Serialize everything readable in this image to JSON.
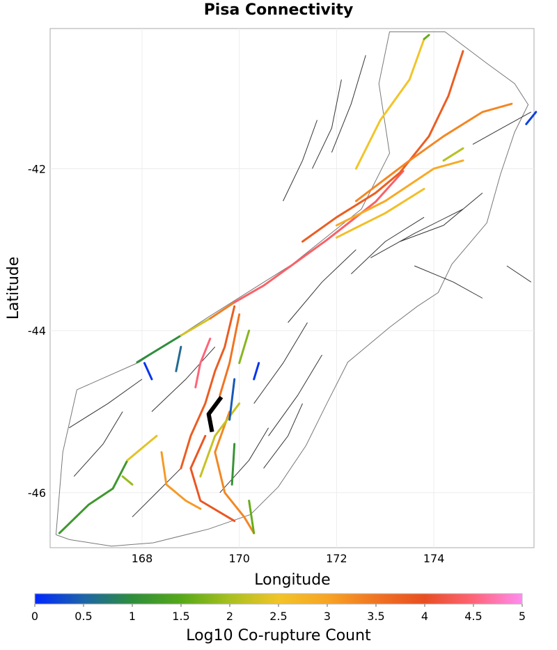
{
  "title": "Pisa Connectivity",
  "chart_data": {
    "type": "map",
    "title": "Pisa Connectivity",
    "xlabel": "Longitude",
    "ylabel": "Latitude",
    "xlim": [
      166.11,
      176.06
    ],
    "ylim": [
      -46.68,
      -40.27
    ],
    "xticks": [
      168,
      170,
      172,
      174
    ],
    "yticks": [
      -42,
      -44,
      -46
    ],
    "xtick_labels": [
      "168",
      "170",
      "172",
      "174"
    ],
    "ytick_labels": [
      "-42",
      "-44",
      "-46"
    ],
    "grid": true,
    "colorbar": {
      "label": "Log10 Co-rupture Count",
      "range": [
        0,
        5
      ],
      "ticks": [
        "0",
        "0.5",
        "1",
        "1.5",
        "2",
        "2.5",
        "3",
        "3.5",
        "4",
        "4.5",
        "5"
      ],
      "stops": [
        {
          "v": 0,
          "c": "#0028ff"
        },
        {
          "v": 0.5,
          "c": "#1d64a8"
        },
        {
          "v": 1,
          "c": "#2f8e3c"
        },
        {
          "v": 1.5,
          "c": "#56a818"
        },
        {
          "v": 2,
          "c": "#a8c020"
        },
        {
          "v": 2.5,
          "c": "#f2c428"
        },
        {
          "v": 3,
          "c": "#f8a424"
        },
        {
          "v": 3.5,
          "c": "#f07422"
        },
        {
          "v": 4,
          "c": "#e84e22"
        },
        {
          "v": 4.5,
          "c": "#ff6478"
        },
        {
          "v": 5,
          "c": "#ff8cf0"
        }
      ]
    },
    "coastline": [
      [
        166.23,
        -46.52
      ],
      [
        166.37,
        -45.5
      ],
      [
        166.66,
        -44.73
      ],
      [
        167.94,
        -44.39
      ],
      [
        169.37,
        -43.83
      ],
      [
        171.09,
        -43.18
      ],
      [
        171.8,
        -42.84
      ],
      [
        172.51,
        -42.5
      ],
      [
        173.09,
        -41.81
      ],
      [
        172.87,
        -40.95
      ],
      [
        173.09,
        -40.31
      ],
      [
        174.23,
        -40.31
      ],
      [
        175.09,
        -40.7
      ],
      [
        175.66,
        -40.95
      ],
      [
        175.94,
        -41.21
      ],
      [
        175.66,
        -41.55
      ],
      [
        175.37,
        -42.07
      ],
      [
        175.09,
        -42.67
      ],
      [
        174.37,
        -43.18
      ],
      [
        174.09,
        -43.53
      ],
      [
        173.66,
        -43.7
      ],
      [
        173.09,
        -43.96
      ],
      [
        172.23,
        -44.39
      ],
      [
        171.8,
        -44.9
      ],
      [
        171.37,
        -45.42
      ],
      [
        170.8,
        -45.93
      ],
      [
        170.23,
        -46.27
      ],
      [
        169.37,
        -46.45
      ],
      [
        168.23,
        -46.62
      ],
      [
        167.37,
        -46.66
      ],
      [
        166.51,
        -46.58
      ],
      [
        166.23,
        -46.52
      ]
    ],
    "background_faults": [
      [
        [
          166.5,
          -45.2
        ],
        [
          167.3,
          -44.9
        ],
        [
          168.0,
          -44.6
        ]
      ],
      [
        [
          166.6,
          -45.8
        ],
        [
          167.2,
          -45.4
        ],
        [
          167.6,
          -45.0
        ]
      ],
      [
        [
          168.2,
          -45.0
        ],
        [
          168.9,
          -44.6
        ],
        [
          169.5,
          -44.2
        ]
      ],
      [
        [
          170.3,
          -44.9
        ],
        [
          170.9,
          -44.4
        ],
        [
          171.4,
          -43.9
        ]
      ],
      [
        [
          170.6,
          -45.3
        ],
        [
          171.2,
          -44.8
        ],
        [
          171.7,
          -44.3
        ]
      ],
      [
        [
          171.0,
          -43.9
        ],
        [
          171.7,
          -43.4
        ],
        [
          172.4,
          -43.0
        ]
      ],
      [
        [
          172.3,
          -43.3
        ],
        [
          173.0,
          -42.9
        ],
        [
          173.8,
          -42.6
        ]
      ],
      [
        [
          172.7,
          -43.1
        ],
        [
          173.6,
          -42.8
        ],
        [
          174.6,
          -42.5
        ]
      ],
      [
        [
          173.3,
          -42.9
        ],
        [
          174.2,
          -42.7
        ],
        [
          175.0,
          -42.3
        ]
      ],
      [
        [
          171.9,
          -41.8
        ],
        [
          172.3,
          -41.2
        ],
        [
          172.6,
          -40.6
        ]
      ],
      [
        [
          171.5,
          -42.0
        ],
        [
          171.9,
          -41.5
        ],
        [
          172.1,
          -40.9
        ]
      ],
      [
        [
          170.9,
          -42.4
        ],
        [
          171.3,
          -41.9
        ],
        [
          171.6,
          -41.4
        ]
      ],
      [
        [
          174.8,
          -41.7
        ],
        [
          175.4,
          -41.5
        ],
        [
          176.0,
          -41.3
        ]
      ],
      [
        [
          167.8,
          -46.3
        ],
        [
          168.3,
          -46.0
        ],
        [
          168.8,
          -45.7
        ]
      ],
      [
        [
          170.5,
          -45.7
        ],
        [
          171.0,
          -45.3
        ],
        [
          171.3,
          -44.9
        ]
      ],
      [
        [
          169.6,
          -46.0
        ],
        [
          170.2,
          -45.6
        ],
        [
          170.6,
          -45.2
        ]
      ],
      [
        [
          175.5,
          -43.2
        ],
        [
          176.0,
          -43.4
        ]
      ],
      [
        [
          173.6,
          -43.2
        ],
        [
          174.4,
          -43.4
        ],
        [
          175.0,
          -43.6
        ]
      ]
    ],
    "target_fault": [
      [
        169.63,
        -44.82
      ],
      [
        169.37,
        -45.03
      ],
      [
        169.44,
        -45.25
      ]
    ],
    "faults": [
      {
        "value": 1.2,
        "path": [
          [
            166.3,
            -46.5
          ],
          [
            166.9,
            -46.15
          ],
          [
            167.4,
            -45.95
          ],
          [
            167.7,
            -45.6
          ]
        ]
      },
      {
        "value": 1.0,
        "path": [
          [
            167.9,
            -44.39
          ],
          [
            168.8,
            -44.06
          ]
        ]
      },
      {
        "value": 2.3,
        "path": [
          [
            168.8,
            -44.06
          ],
          [
            169.4,
            -43.85
          ]
        ]
      },
      {
        "value": 3.4,
        "path": [
          [
            169.4,
            -43.85
          ],
          [
            169.9,
            -43.65
          ]
        ]
      },
      {
        "value": 4.4,
        "path": [
          [
            169.9,
            -43.65
          ],
          [
            170.51,
            -43.44
          ],
          [
            171.8,
            -42.88
          ],
          [
            172.8,
            -42.41
          ],
          [
            173.37,
            -42.03
          ]
        ]
      },
      {
        "value": 3.8,
        "path": [
          [
            171.3,
            -42.9
          ],
          [
            172.0,
            -42.6
          ],
          [
            172.8,
            -42.3
          ],
          [
            173.3,
            -42.05
          ],
          [
            173.9,
            -41.6
          ],
          [
            174.3,
            -41.1
          ],
          [
            174.6,
            -40.55
          ]
        ]
      },
      {
        "value": 3.3,
        "path": [
          [
            172.4,
            -42.4
          ],
          [
            173.5,
            -41.9
          ],
          [
            174.2,
            -41.6
          ],
          [
            175.0,
            -41.3
          ],
          [
            175.6,
            -41.2
          ]
        ]
      },
      {
        "value": 2.9,
        "path": [
          [
            172.0,
            -42.7
          ],
          [
            173.0,
            -42.4
          ],
          [
            174.0,
            -42.0
          ],
          [
            174.6,
            -41.9
          ]
        ]
      },
      {
        "value": 2.6,
        "path": [
          [
            172.0,
            -42.85
          ],
          [
            173.0,
            -42.55
          ],
          [
            173.8,
            -42.25
          ]
        ]
      },
      {
        "value": 2.5,
        "path": [
          [
            172.4,
            -42.0
          ],
          [
            172.9,
            -41.4
          ],
          [
            173.5,
            -40.9
          ],
          [
            173.8,
            -40.4
          ]
        ]
      },
      {
        "value": 1.6,
        "path": [
          [
            173.8,
            -40.4
          ],
          [
            173.9,
            -40.35
          ]
        ]
      },
      {
        "value": 0.2,
        "path": [
          [
            175.9,
            -41.45
          ],
          [
            176.1,
            -41.3
          ]
        ]
      },
      {
        "value": 0.1,
        "path": [
          [
            168.05,
            -44.4
          ],
          [
            168.2,
            -44.6
          ]
        ]
      },
      {
        "value": 3.8,
        "path": [
          [
            169.9,
            -43.7
          ],
          [
            169.7,
            -44.2
          ],
          [
            169.5,
            -44.5
          ],
          [
            169.3,
            -44.9
          ],
          [
            169.0,
            -45.3
          ],
          [
            168.8,
            -45.7
          ]
        ]
      },
      {
        "value": 3.5,
        "path": [
          [
            170.0,
            -43.8
          ],
          [
            169.8,
            -44.4
          ],
          [
            169.6,
            -44.8
          ]
        ]
      },
      {
        "value": 3.3,
        "path": [
          [
            169.8,
            -45.0
          ],
          [
            169.5,
            -45.5
          ],
          [
            169.7,
            -46.0
          ],
          [
            170.1,
            -46.3
          ],
          [
            170.3,
            -46.5
          ]
        ]
      },
      {
        "value": 3.9,
        "path": [
          [
            169.3,
            -45.3
          ],
          [
            169.0,
            -45.7
          ],
          [
            169.2,
            -46.1
          ],
          [
            169.9,
            -46.35
          ]
        ]
      },
      {
        "value": 3.1,
        "path": [
          [
            168.4,
            -45.5
          ],
          [
            168.5,
            -45.9
          ],
          [
            168.9,
            -46.1
          ],
          [
            169.2,
            -46.2
          ]
        ]
      },
      {
        "value": 2.4,
        "path": [
          [
            167.7,
            -45.6
          ],
          [
            168.1,
            -45.4
          ],
          [
            168.3,
            -45.3
          ]
        ]
      },
      {
        "value": 4.5,
        "path": [
          [
            169.1,
            -44.7
          ],
          [
            169.2,
            -44.4
          ],
          [
            169.4,
            -44.1
          ]
        ]
      },
      {
        "value": 1.8,
        "path": [
          [
            170.2,
            -44.0
          ],
          [
            170.0,
            -44.4
          ]
        ]
      },
      {
        "value": 2.2,
        "path": [
          [
            170.0,
            -44.9
          ],
          [
            169.5,
            -45.3
          ],
          [
            169.2,
            -45.8
          ]
        ]
      },
      {
        "value": 0.4,
        "path": [
          [
            169.9,
            -44.6
          ],
          [
            169.8,
            -45.1
          ]
        ]
      },
      {
        "value": 0.1,
        "path": [
          [
            170.4,
            -44.4
          ],
          [
            170.3,
            -44.6
          ]
        ]
      },
      {
        "value": 0.6,
        "path": [
          [
            168.8,
            -44.2
          ],
          [
            168.7,
            -44.5
          ]
        ]
      },
      {
        "value": 1.1,
        "path": [
          [
            169.9,
            -45.4
          ],
          [
            169.85,
            -45.9
          ]
        ]
      },
      {
        "value": 1.6,
        "path": [
          [
            170.2,
            -46.1
          ],
          [
            170.3,
            -46.5
          ]
        ]
      },
      {
        "value": 1.9,
        "path": [
          [
            167.6,
            -45.8
          ],
          [
            167.8,
            -45.9
          ]
        ]
      },
      {
        "value": 2.1,
        "path": [
          [
            174.2,
            -41.9
          ],
          [
            174.6,
            -41.75
          ]
        ]
      }
    ]
  }
}
